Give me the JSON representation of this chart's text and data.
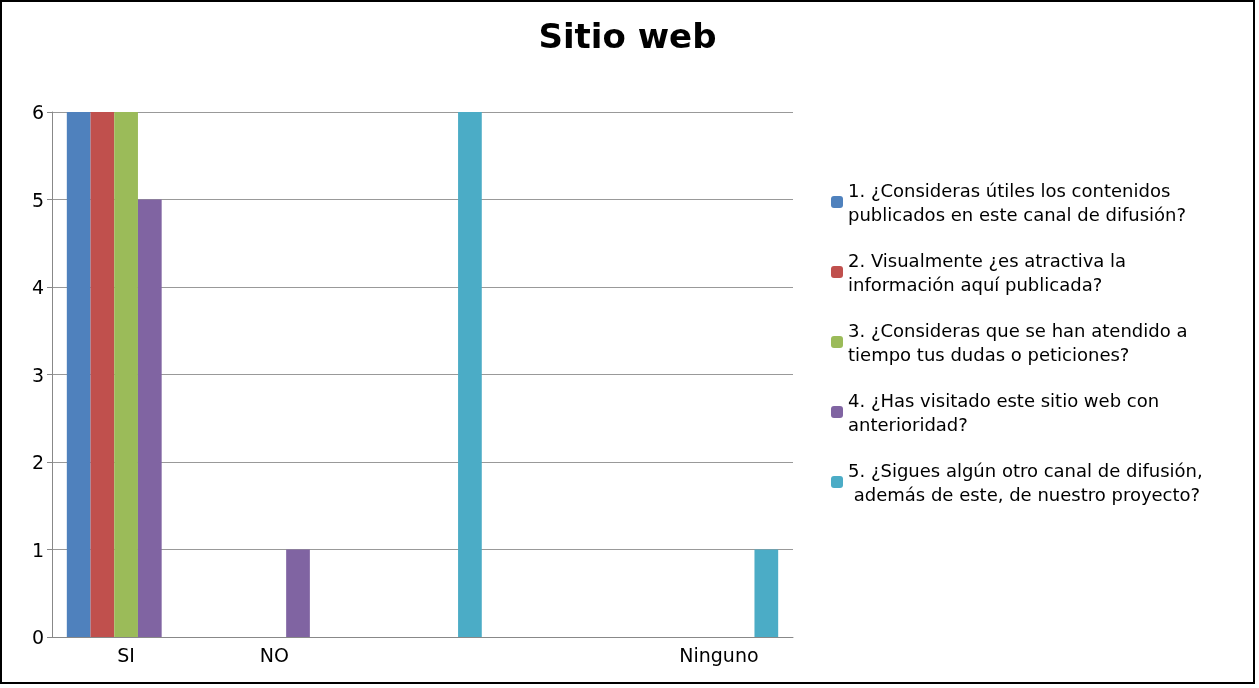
{
  "chart_data": {
    "type": "bar",
    "title": "Sitio web",
    "categories": [
      "SI",
      "NO",
      null,
      null,
      "Ninguno"
    ],
    "series": [
      {
        "name": "1. ¿Consideras útiles los contenidos publicados en este canal de difusión?",
        "color": "#4f81bd",
        "values": [
          6,
          null,
          null,
          null,
          null
        ]
      },
      {
        "name": "2. Visualmente ¿es atractiva la información aquí publicada?",
        "color": "#c0504d",
        "values": [
          6,
          null,
          null,
          null,
          null
        ]
      },
      {
        "name": "3. ¿Consideras que se han atendido a tiempo tus dudas o peticiones?",
        "color": "#9bbb59",
        "values": [
          6,
          null,
          null,
          null,
          null
        ]
      },
      {
        "name": "4. ¿Has visitado este sitio web con anterioridad?",
        "color": "#8064a2",
        "values": [
          5,
          1,
          null,
          null,
          null
        ]
      },
      {
        "name": "5. ¿Sigues algún otro canal de difusión, además de este, de nuestro proyecto?",
        "color": "#4bacc6",
        "values": [
          null,
          null,
          6,
          null,
          1
        ]
      }
    ],
    "ylim": [
      0,
      6
    ],
    "yticks": [
      0,
      1,
      2,
      3,
      4,
      5,
      6
    ],
    "grid": "y",
    "legend": "right"
  }
}
